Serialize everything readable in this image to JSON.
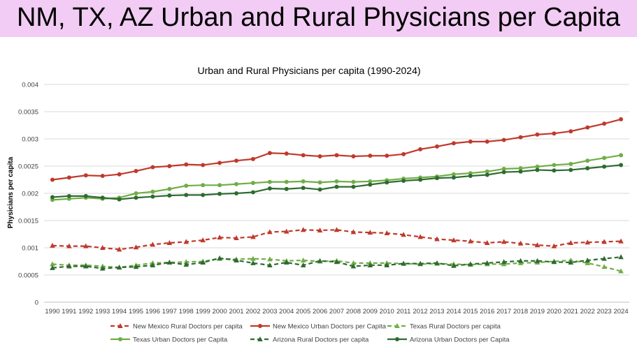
{
  "page": {
    "title": "NM, TX, AZ Urban and Rural Physicians per Capita"
  },
  "chart_data": {
    "type": "line",
    "title": "Urban and Rural Physicians per capita (1990-2024)",
    "xlabel": "",
    "ylabel": "Physicians per capita",
    "ylim": [
      0,
      0.004
    ],
    "yticks": [
      "0",
      "0.0005",
      "0.001",
      "0.0015",
      "0.002",
      "0.0025",
      "0.003",
      "0.0035",
      "0.004"
    ],
    "grid": true,
    "legend_position": "bottom",
    "categories": [
      "1990",
      "1991",
      "1992",
      "1993",
      "1994",
      "1995",
      "1996",
      "1997",
      "1998",
      "1999",
      "2000",
      "2001",
      "2002",
      "2003",
      "2004",
      "2005",
      "2006",
      "2007",
      "2008",
      "2009",
      "2010",
      "2011",
      "2012",
      "2013",
      "2014",
      "2015",
      "2016",
      "2017",
      "2018",
      "2019",
      "2020",
      "2021",
      "2022",
      "2023",
      "2024"
    ],
    "series": [
      {
        "name": "New Mexico Rural Doctors per capita",
        "color": "#c0392b",
        "dash": true,
        "marker": "triangle",
        "values": [
          0.00104,
          0.00103,
          0.00103,
          0.001,
          0.00097,
          0.00101,
          0.00106,
          0.00109,
          0.00111,
          0.00114,
          0.00119,
          0.00118,
          0.0012,
          0.00129,
          0.0013,
          0.00133,
          0.00132,
          0.00133,
          0.00129,
          0.00128,
          0.00127,
          0.00124,
          0.0012,
          0.00116,
          0.00114,
          0.00112,
          0.00109,
          0.00111,
          0.00108,
          0.00105,
          0.00103,
          0.00109,
          0.0011,
          0.00111,
          0.00112
        ]
      },
      {
        "name": "New Mexico Urban Doctors per Capita",
        "color": "#c0392b",
        "dash": false,
        "marker": "circle",
        "values": [
          0.00225,
          0.00229,
          0.00233,
          0.00232,
          0.00235,
          0.00241,
          0.00248,
          0.0025,
          0.00253,
          0.00252,
          0.00256,
          0.0026,
          0.00263,
          0.00274,
          0.00273,
          0.0027,
          0.00268,
          0.0027,
          0.00268,
          0.00269,
          0.00269,
          0.00272,
          0.00281,
          0.00286,
          0.00292,
          0.00295,
          0.00295,
          0.00298,
          0.00303,
          0.00308,
          0.0031,
          0.00314,
          0.00321,
          0.00328,
          0.00336
        ]
      },
      {
        "name": "Texas Rural Doctors per capita",
        "color": "#70ad47",
        "dash": true,
        "marker": "triangle",
        "values": [
          0.0007,
          0.00068,
          0.00068,
          0.00066,
          0.00064,
          0.00068,
          0.00072,
          0.00073,
          0.00074,
          0.00075,
          0.0008,
          0.00079,
          0.0008,
          0.00079,
          0.00076,
          0.00077,
          0.00075,
          0.00076,
          0.00072,
          0.00072,
          0.00072,
          0.00071,
          0.0007,
          0.00071,
          0.0007,
          0.00069,
          0.0007,
          0.0007,
          0.00072,
          0.00073,
          0.00075,
          0.00077,
          0.00072,
          0.00065,
          0.00057
        ]
      },
      {
        "name": "Texas Urban Doctors per Capita",
        "color": "#70ad47",
        "dash": false,
        "marker": "circle",
        "values": [
          0.00188,
          0.0019,
          0.00192,
          0.0019,
          0.00192,
          0.002,
          0.00203,
          0.00208,
          0.00214,
          0.00215,
          0.00215,
          0.00217,
          0.00219,
          0.00221,
          0.00221,
          0.00222,
          0.0022,
          0.00222,
          0.00221,
          0.00222,
          0.00224,
          0.00227,
          0.00229,
          0.00231,
          0.00235,
          0.00237,
          0.0024,
          0.00245,
          0.00246,
          0.00249,
          0.00252,
          0.00254,
          0.0026,
          0.00265,
          0.0027
        ]
      },
      {
        "name": "Arizona Rural Doctors per capita",
        "color": "#2e6b30",
        "dash": true,
        "marker": "triangle",
        "values": [
          0.00063,
          0.00066,
          0.00066,
          0.00062,
          0.00064,
          0.00065,
          0.00068,
          0.00073,
          0.00069,
          0.00073,
          0.00081,
          0.00077,
          0.00072,
          0.00068,
          0.00073,
          0.00068,
          0.00076,
          0.00074,
          0.00066,
          0.00068,
          0.00068,
          0.00071,
          0.00071,
          0.00072,
          0.00067,
          0.0007,
          0.00072,
          0.00074,
          0.00076,
          0.00076,
          0.00074,
          0.00073,
          0.00077,
          0.0008,
          0.00083
        ]
      },
      {
        "name": "Arizona Urban Doctors per Capita",
        "color": "#2e6b30",
        "dash": false,
        "marker": "circle",
        "values": [
          0.00193,
          0.00195,
          0.00195,
          0.00192,
          0.00189,
          0.00192,
          0.00194,
          0.00196,
          0.00197,
          0.00197,
          0.00199,
          0.002,
          0.00202,
          0.00209,
          0.00208,
          0.0021,
          0.00207,
          0.00212,
          0.00212,
          0.00216,
          0.0022,
          0.00223,
          0.00225,
          0.00228,
          0.00229,
          0.00232,
          0.00234,
          0.00239,
          0.0024,
          0.00243,
          0.00242,
          0.00243,
          0.00246,
          0.00249,
          0.00252
        ]
      }
    ]
  }
}
